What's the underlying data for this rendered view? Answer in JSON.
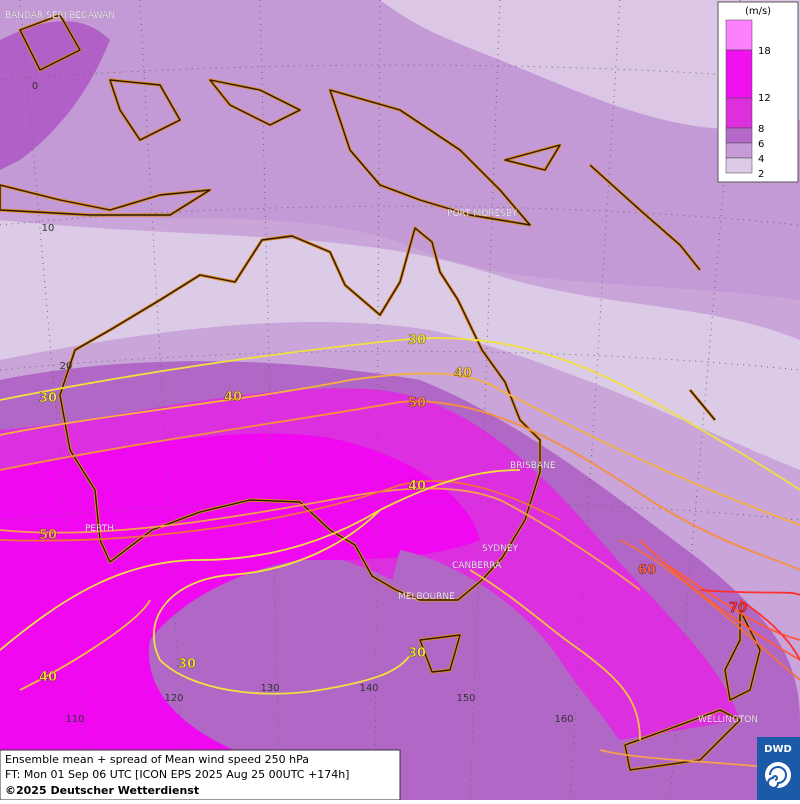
{
  "map": {
    "cities": [
      "BANDAR SERI BEGAWAN",
      "PORT MORESBY",
      "BRISBANE",
      "PERTH",
      "SYDNEY",
      "CANBERRA",
      "MELBOURNE",
      "WELLINGTON"
    ],
    "latitude_labels": [
      "0",
      "10",
      "20"
    ],
    "longitude_labels": [
      "110",
      "120",
      "130",
      "140",
      "150",
      "160"
    ],
    "contour_labels": [
      "30",
      "40",
      "50",
      "30",
      "40",
      "40",
      "50",
      "60",
      "70",
      "30",
      "30",
      "40"
    ]
  },
  "legend": {
    "unit": "(m/s)",
    "levels": [
      "18",
      "12",
      "8",
      "6",
      "4",
      "2"
    ],
    "colors": [
      "#ff80ff",
      "#f010f0",
      "#dd30dd",
      "#b468c8",
      "#c79ad8",
      "#dccbe6"
    ]
  },
  "footer": {
    "lines": [
      "Ensemble mean + spread of Mean wind speed 250 hPa",
      "FT: Mon 01 Sep 06 UTC [ICON EPS 2025 Aug 25 00UTC +174h]",
      "©2025 Deutscher Wetterdienst"
    ]
  },
  "logo": "DWD"
}
